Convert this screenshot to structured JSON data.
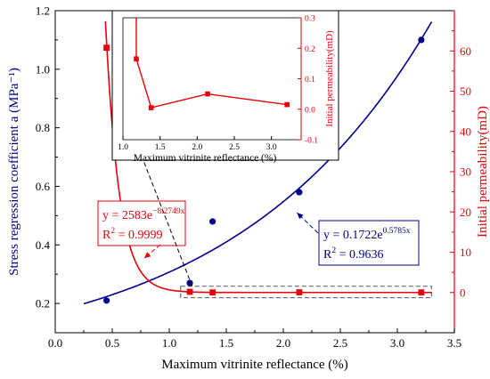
{
  "chart_data": [
    {
      "type": "scatter",
      "xlabel": "Maximum vitrinite reflectance (%)",
      "ylabel_left": "Stress regression coefficient a (MPa⁻¹)",
      "ylabel_right": "Initial permeability(mD)",
      "xlim": [
        0.0,
        3.5
      ],
      "ylim_left": [
        0.1,
        1.2
      ],
      "ylim_right": [
        -10,
        70
      ],
      "x_ticks": [
        "0.0",
        "0.5",
        "1.0",
        "1.5",
        "2.0",
        "2.5",
        "3.0",
        "3.5"
      ],
      "y_left_ticks": [
        "0.2",
        "0.4",
        "0.6",
        "0.8",
        "1.0",
        "1.2"
      ],
      "y_right_ticks": [
        "0",
        "10",
        "20",
        "30",
        "40",
        "50",
        "60"
      ],
      "series": [
        {
          "color": "#00008B",
          "axis": "left",
          "marker": "circle",
          "x": [
            0.45,
            1.18,
            1.38,
            2.14,
            3.21
          ],
          "y": [
            0.21,
            0.27,
            0.48,
            0.58,
            1.1
          ],
          "fit": {
            "type": "exp",
            "a": 0.1722,
            "b": 0.5785,
            "x_range": [
              0.25,
              3.3
            ]
          }
        },
        {
          "color": "#E8000B",
          "axis": "right",
          "marker": "square",
          "x": [
            0.45,
            1.18,
            1.38,
            2.14,
            3.21
          ],
          "y": [
            60.8,
            0.165,
            0.005,
            0.05,
            0.015
          ],
          "fit": {
            "type": "exp",
            "a": 2583,
            "b": -8.2749,
            "x_range": [
              0.44,
              3.3
            ]
          }
        }
      ],
      "annotations": {
        "blue_eq": {
          "y_prefix": "y = 0.1722e",
          "exp": "0.5785x",
          "r2": "R",
          "r2_rest": " = 0.9636"
        },
        "red_eq": {
          "y_prefix": "y = 2583e",
          "exp": "−8.2749x",
          "r2": "R",
          "r2_rest": " = 0.9999"
        }
      }
    },
    {
      "type": "line",
      "inset": true,
      "xlabel": "Maximum vitrinite reflectance (%)",
      "ylabel": "Initial permeability(mD)",
      "xlim": [
        1.0,
        3.4
      ],
      "ylim": [
        -0.1,
        0.3
      ],
      "x_ticks": [
        "1.0",
        "1.5",
        "2.0",
        "2.5",
        "3.0"
      ],
      "y_ticks": [
        "-0.1",
        "0.0",
        "0.1",
        "0.2",
        "0.3"
      ],
      "series": [
        {
          "color": "#E8000B",
          "x": [
            1.18,
            1.38,
            2.14,
            3.21
          ],
          "y": [
            0.165,
            0.005,
            0.05,
            0.015
          ]
        }
      ]
    }
  ]
}
